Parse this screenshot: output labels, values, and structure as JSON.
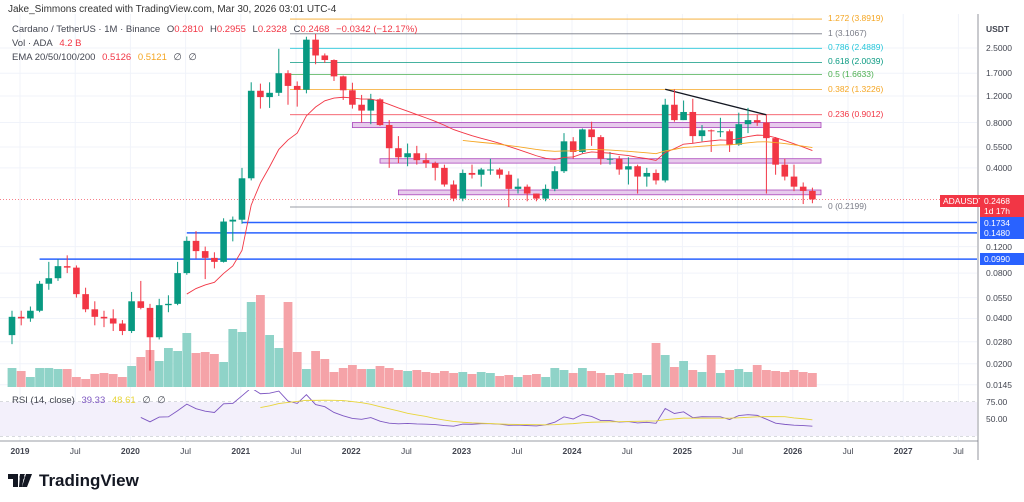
{
  "header": {
    "attribution": "Jake_Simmons created with TradingView.com, Mar 30, 2026 03:01 UTC-4"
  },
  "legend": {
    "symbol": "Cardano / TetherUS · 1M · Binance",
    "open_label": "O",
    "open": "0.2810",
    "high_label": "H",
    "high": "0.2955",
    "low_label": "L",
    "low": "0.2328",
    "close_label": "C",
    "close": "0.2468",
    "change": "−0.0342 (−12.17%)",
    "vol_label": "Vol · ADA",
    "vol_value": "4.2 B",
    "ema_label": "EMA 20/50/100/200",
    "ema20": "0.5126",
    "ema50": "0.5121",
    "ema100": "∅",
    "ema200": "∅",
    "rsi_label": "RSI (14, close)",
    "rsi_value": "39.33",
    "rsi_ma": "48.61",
    "rsi_na1": "∅",
    "rsi_na2": "∅"
  },
  "price_axis": {
    "unit": "USDT",
    "ticks": [
      "2.5000",
      "1.7000",
      "1.2000",
      "0.8000",
      "0.5500",
      "0.4000",
      "0.1200",
      "0.0800",
      "0.0550",
      "0.0400",
      "0.0280",
      "0.0200",
      "0.0145"
    ],
    "tags": [
      {
        "text": "0.1734",
        "color": "#2962ff"
      },
      {
        "text": "0.1480",
        "color": "#2962ff"
      },
      {
        "text": "0.0990",
        "color": "#2962ff"
      }
    ],
    "current": {
      "symbol": "ADAUSDT",
      "price": "0.2468",
      "countdown": "1d 17h",
      "color": "#f23645"
    }
  },
  "rsi_axis": {
    "ticks": [
      "75.00",
      "50.00"
    ]
  },
  "time_axis": {
    "ticks": [
      "2019",
      "Jul",
      "2020",
      "Jul",
      "2021",
      "Jul",
      "2022",
      "Jul",
      "2023",
      "Jul",
      "2024",
      "Jul",
      "2025",
      "Jul",
      "2026",
      "Jul",
      "2027",
      "Jul"
    ]
  },
  "fib_levels": [
    {
      "text": "1.272 (3.8919)",
      "level": 1.272,
      "price": 3.8919,
      "color": "#f5a623"
    },
    {
      "text": "1 (3.1067)",
      "level": 1,
      "price": 3.1067,
      "color": "#787b86"
    },
    {
      "text": "0.786 (2.4889)",
      "level": 0.786,
      "price": 2.4889,
      "color": "#26c6da"
    },
    {
      "text": "0.618 (2.0039)",
      "level": 0.618,
      "price": 2.0039,
      "color": "#089981"
    },
    {
      "text": "0.5 (1.6633)",
      "level": 0.5,
      "price": 1.6633,
      "color": "#4caf50"
    },
    {
      "text": "0.382 (1.3226)",
      "level": 0.382,
      "price": 1.3226,
      "color": "#f5a623"
    },
    {
      "text": "0.236 (0.9012)",
      "level": 0.236,
      "price": 0.9012,
      "color": "#f23645"
    },
    {
      "text": "0 (0.2199)",
      "level": 0,
      "price": 0.2199,
      "color": "#787b86"
    }
  ],
  "horizontal_lines": [
    {
      "price": 0.1734,
      "from": "2021-01"
    },
    {
      "price": 0.148,
      "from": "2020-07"
    },
    {
      "price": 0.099,
      "from": "2019-03"
    }
  ],
  "zones": [
    {
      "low": 0.74,
      "high": 0.8,
      "from": "2022-01"
    },
    {
      "low": 0.43,
      "high": 0.46,
      "from": "2022-04"
    },
    {
      "low": 0.265,
      "high": 0.285,
      "from": "2022-06"
    }
  ],
  "trendline": {
    "from": {
      "date": "2024-11",
      "price": 1.33
    },
    "to": {
      "date": "2025-10",
      "price": 0.9
    }
  },
  "colors": {
    "up": "#089981",
    "down": "#f23645",
    "vol_up": "#8fd3c8",
    "vol_down": "#f5a3a8",
    "ema20": "#f23645",
    "ema50": "#f5a623",
    "rsi": "#7e57c2",
    "rsi_ma": "#e8d53a",
    "hline": "#2962ff",
    "zone": "#e1bee7"
  },
  "chart_data": {
    "type": "candlestick",
    "title": "Cardano / TetherUS · 1M · Binance",
    "y_scale": "log",
    "grid": true,
    "start": "2018-12",
    "interval": "1M",
    "candles": [
      [
        0.031,
        0.045,
        0.027,
        0.041
      ],
      [
        0.041,
        0.045,
        0.036,
        0.04
      ],
      [
        0.04,
        0.048,
        0.038,
        0.045
      ],
      [
        0.045,
        0.071,
        0.044,
        0.068
      ],
      [
        0.068,
        0.095,
        0.062,
        0.074
      ],
      [
        0.074,
        0.099,
        0.071,
        0.089
      ],
      [
        0.089,
        0.105,
        0.08,
        0.087
      ],
      [
        0.087,
        0.09,
        0.055,
        0.058
      ],
      [
        0.058,
        0.064,
        0.044,
        0.046
      ],
      [
        0.046,
        0.052,
        0.036,
        0.041
      ],
      [
        0.041,
        0.045,
        0.035,
        0.04
      ],
      [
        0.04,
        0.046,
        0.033,
        0.037
      ],
      [
        0.037,
        0.039,
        0.031,
        0.033
      ],
      [
        0.033,
        0.06,
        0.032,
        0.052
      ],
      [
        0.052,
        0.071,
        0.046,
        0.047
      ],
      [
        0.047,
        0.05,
        0.018,
        0.03
      ],
      [
        0.03,
        0.054,
        0.029,
        0.049
      ],
      [
        0.049,
        0.057,
        0.044,
        0.05
      ],
      [
        0.05,
        0.095,
        0.049,
        0.08
      ],
      [
        0.08,
        0.14,
        0.078,
        0.131
      ],
      [
        0.131,
        0.152,
        0.1,
        0.112
      ],
      [
        0.112,
        0.12,
        0.073,
        0.101
      ],
      [
        0.101,
        0.11,
        0.086,
        0.095
      ],
      [
        0.095,
        0.185,
        0.094,
        0.176
      ],
      [
        0.176,
        0.19,
        0.13,
        0.181
      ],
      [
        0.181,
        0.4,
        0.17,
        0.341
      ],
      [
        0.341,
        1.48,
        0.33,
        1.3
      ],
      [
        1.3,
        1.45,
        0.99,
        1.18
      ],
      [
        1.18,
        1.48,
        1.0,
        1.26
      ],
      [
        1.26,
        2.47,
        1.2,
        1.7
      ],
      [
        1.7,
        1.78,
        1.05,
        1.4
      ],
      [
        1.4,
        1.5,
        1.02,
        1.32
      ],
      [
        1.32,
        2.97,
        1.25,
        2.84
      ],
      [
        2.84,
        3.1,
        1.95,
        2.23
      ],
      [
        2.23,
        2.3,
        1.99,
        2.08
      ],
      [
        2.08,
        2.1,
        1.51,
        1.62
      ],
      [
        1.62,
        1.64,
        1.13,
        1.31
      ],
      [
        1.31,
        1.47,
        0.99,
        1.05
      ],
      [
        1.05,
        1.22,
        0.8,
        0.96
      ],
      [
        0.96,
        1.24,
        0.78,
        1.14
      ],
      [
        1.14,
        1.16,
        0.76,
        0.77
      ],
      [
        0.77,
        0.83,
        0.4,
        0.54
      ],
      [
        0.54,
        0.65,
        0.43,
        0.47
      ],
      [
        0.47,
        0.58,
        0.41,
        0.5
      ],
      [
        0.5,
        0.56,
        0.42,
        0.45
      ],
      [
        0.45,
        0.5,
        0.4,
        0.43
      ],
      [
        0.43,
        0.44,
        0.33,
        0.4
      ],
      [
        0.4,
        0.42,
        0.3,
        0.31
      ],
      [
        0.31,
        0.33,
        0.24,
        0.25
      ],
      [
        0.25,
        0.39,
        0.24,
        0.37
      ],
      [
        0.37,
        0.42,
        0.34,
        0.36
      ],
      [
        0.36,
        0.4,
        0.3,
        0.39
      ],
      [
        0.39,
        0.46,
        0.36,
        0.39
      ],
      [
        0.39,
        0.4,
        0.34,
        0.36
      ],
      [
        0.36,
        0.38,
        0.22,
        0.29
      ],
      [
        0.29,
        0.34,
        0.27,
        0.3
      ],
      [
        0.3,
        0.31,
        0.24,
        0.27
      ],
      [
        0.27,
        0.27,
        0.24,
        0.25
      ],
      [
        0.25,
        0.31,
        0.24,
        0.29
      ],
      [
        0.29,
        0.41,
        0.28,
        0.38
      ],
      [
        0.38,
        0.68,
        0.37,
        0.6
      ],
      [
        0.6,
        0.64,
        0.46,
        0.51
      ],
      [
        0.51,
        0.73,
        0.5,
        0.72
      ],
      [
        0.72,
        0.81,
        0.56,
        0.64
      ],
      [
        0.64,
        0.66,
        0.42,
        0.46
      ],
      [
        0.46,
        0.51,
        0.42,
        0.46
      ],
      [
        0.46,
        0.48,
        0.36,
        0.39
      ],
      [
        0.39,
        0.47,
        0.31,
        0.41
      ],
      [
        0.41,
        0.42,
        0.27,
        0.35
      ],
      [
        0.35,
        0.4,
        0.3,
        0.37
      ],
      [
        0.37,
        0.39,
        0.31,
        0.33
      ],
      [
        0.33,
        1.15,
        0.32,
        1.05
      ],
      [
        1.05,
        1.33,
        0.81,
        0.83
      ],
      [
        0.83,
        1.12,
        0.83,
        0.94
      ],
      [
        0.94,
        1.15,
        0.58,
        0.65
      ],
      [
        0.65,
        0.77,
        0.6,
        0.71
      ],
      [
        0.71,
        0.72,
        0.51,
        0.7
      ],
      [
        0.7,
        0.86,
        0.64,
        0.7
      ],
      [
        0.7,
        0.72,
        0.51,
        0.57
      ],
      [
        0.57,
        0.93,
        0.56,
        0.78
      ],
      [
        0.78,
        1.0,
        0.68,
        0.83
      ],
      [
        0.83,
        0.9,
        0.76,
        0.8
      ],
      [
        0.8,
        0.9,
        0.27,
        0.63
      ],
      [
        0.63,
        0.64,
        0.36,
        0.42
      ],
      [
        0.42,
        0.46,
        0.33,
        0.35
      ],
      [
        0.35,
        0.42,
        0.28,
        0.3
      ],
      [
        0.3,
        0.32,
        0.23,
        0.281
      ],
      [
        0.281,
        0.2955,
        0.2328,
        0.2468
      ]
    ],
    "volume_billions": [
      5.7,
      4.8,
      3.0,
      5.7,
      5.7,
      5.4,
      5.4,
      3.0,
      2.4,
      3.9,
      4.2,
      3.9,
      3.0,
      6.3,
      9.0,
      11.1,
      7.8,
      11.7,
      10.8,
      16.2,
      10.2,
      10.5,
      9.9,
      7.5,
      17.4,
      16.5,
      25.5,
      27.6,
      15.6,
      11.7,
      25.5,
      10.5,
      5.4,
      10.8,
      8.4,
      4.5,
      5.7,
      6.6,
      5.4,
      5.4,
      6.3,
      5.7,
      5.1,
      4.8,
      5.1,
      4.5,
      4.2,
      4.8,
      4.2,
      4.5,
      3.9,
      4.5,
      4.2,
      3.3,
      3.6,
      3.0,
      3.6,
      3.9,
      3.0,
      5.7,
      5.1,
      4.2,
      5.7,
      4.8,
      4.2,
      3.6,
      4.2,
      3.9,
      4.2,
      3.6,
      13.2,
      9.6,
      6.0,
      7.8,
      5.1,
      4.5,
      9.6,
      4.2,
      5.1,
      5.4,
      4.5,
      6.6,
      5.1,
      4.8,
      4.5,
      5.1,
      4.5,
      4.2
    ]
  }
}
